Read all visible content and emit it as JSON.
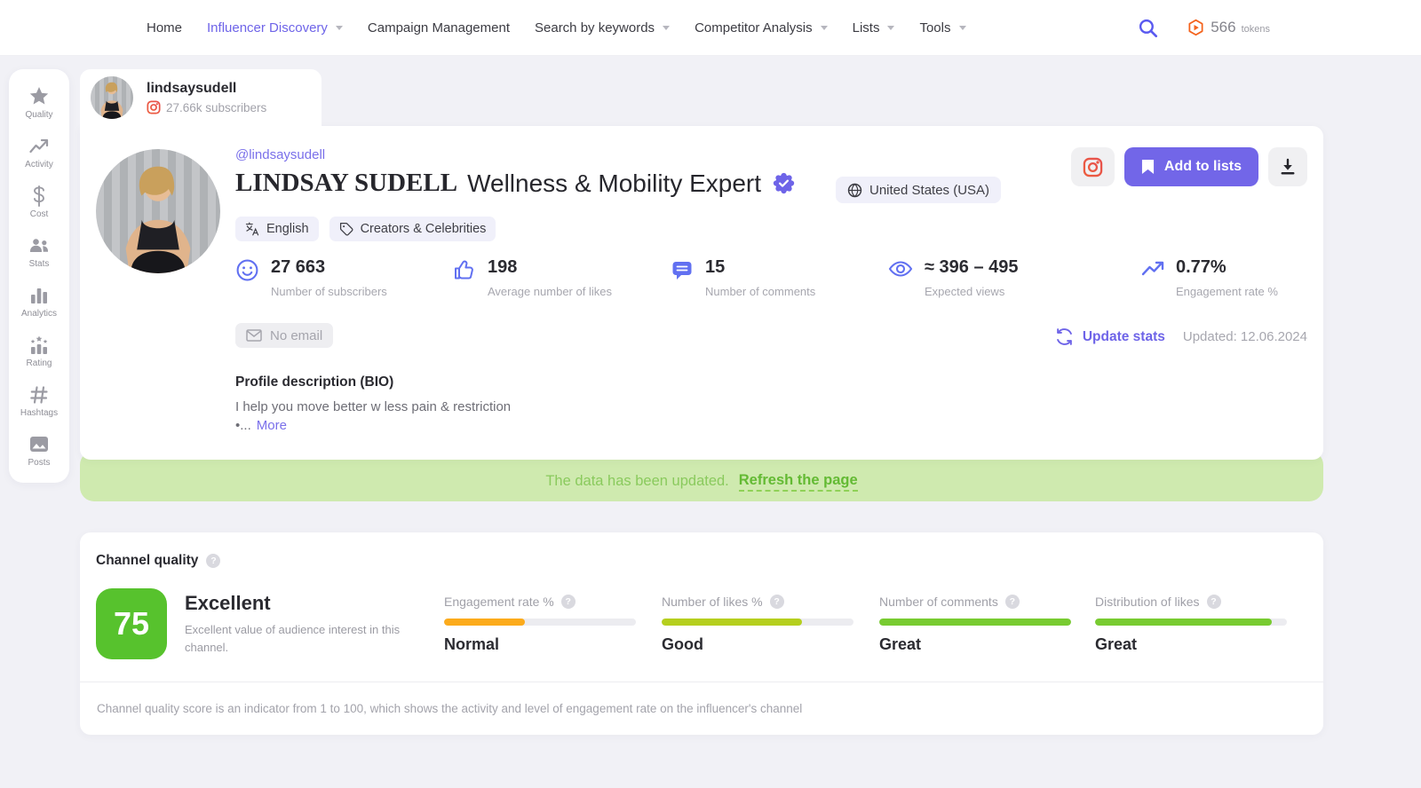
{
  "nav": {
    "items": [
      {
        "label": "Home"
      },
      {
        "label": "Influencer Discovery"
      },
      {
        "label": "Campaign Management"
      },
      {
        "label": "Search by keywords"
      },
      {
        "label": "Competitor Analysis"
      },
      {
        "label": "Lists"
      },
      {
        "label": "Tools"
      }
    ],
    "search_icon": "search-icon",
    "tokens": {
      "icon": "token-icon",
      "count": "566",
      "unit": "tokens"
    }
  },
  "sidebar": {
    "items": [
      {
        "label": "Quality",
        "icon": "star-icon"
      },
      {
        "label": "Activity",
        "icon": "trend-up-icon"
      },
      {
        "label": "Cost",
        "icon": "dollar-icon"
      },
      {
        "label": "Stats",
        "icon": "people-icon"
      },
      {
        "label": "Analytics",
        "icon": "bar-chart-icon"
      },
      {
        "label": "Rating",
        "icon": "rating-bars-icon"
      },
      {
        "label": "Hashtags",
        "icon": "hashtag-icon"
      },
      {
        "label": "Posts",
        "icon": "image-icon"
      }
    ]
  },
  "tab": {
    "name": "lindsaysudell",
    "platform_icon": "instagram-icon",
    "subscribers": "27.66k subscribers"
  },
  "profile": {
    "handle": "@lindsaysudell",
    "name": "LINDSAY SUDELL",
    "name_suffix": "Wellness & Mobility Expert",
    "verified_icon": "verified-badge-icon",
    "country": "United States (USA)",
    "tags": [
      {
        "icon": "translate-icon",
        "label": "English"
      },
      {
        "icon": "tag-icon",
        "label": "Creators & Celebrities"
      }
    ],
    "actions": {
      "instagram_icon": "instagram-icon",
      "add_to_lists": "Add to lists",
      "download_icon": "download-icon"
    },
    "stats": [
      {
        "icon": "smiley-icon",
        "value": "27 663",
        "label": "Number of subscribers"
      },
      {
        "icon": "thumbs-up-icon",
        "value": "198",
        "label": "Average number of likes"
      },
      {
        "icon": "comment-icon",
        "value": "15",
        "label": "Number of comments"
      },
      {
        "icon": "eye-icon",
        "value": "≈ 396 – 495",
        "label": "Expected views"
      },
      {
        "icon": "trend-up-icon",
        "value": "0.77%",
        "label": "Engagement rate %"
      }
    ],
    "email_status": "No email",
    "update_stats_label": "Update stats",
    "updated_label": "Updated: 12.06.2024",
    "bio": {
      "heading": "Profile description (BIO)",
      "line1": "I help you move better w less pain & restriction",
      "line2": "•...",
      "more_label": "More"
    }
  },
  "banner": {
    "message": "The data has been updated.",
    "action_label": "Refresh the page"
  },
  "channel_quality": {
    "heading": "Channel quality",
    "score": "75",
    "score_color": "#57c22d",
    "rating": "Excellent",
    "description": "Excellent value of audience interest in this channel.",
    "meters": [
      {
        "label": "Engagement rate %",
        "status": "Normal",
        "percent": 42,
        "color": "#fcab1c"
      },
      {
        "label": "Number of likes %",
        "status": "Good",
        "percent": 73,
        "color": "#b5cf1e"
      },
      {
        "label": "Number of comments",
        "status": "Great",
        "percent": 100,
        "color": "#78cb31"
      },
      {
        "label": "Distribution of likes",
        "status": "Great",
        "percent": 92,
        "color": "#78cb31"
      }
    ],
    "footnote": "Channel quality score is an indicator from 1 to 100, which shows the activity and level of engagement rate on the influencer's channel"
  }
}
